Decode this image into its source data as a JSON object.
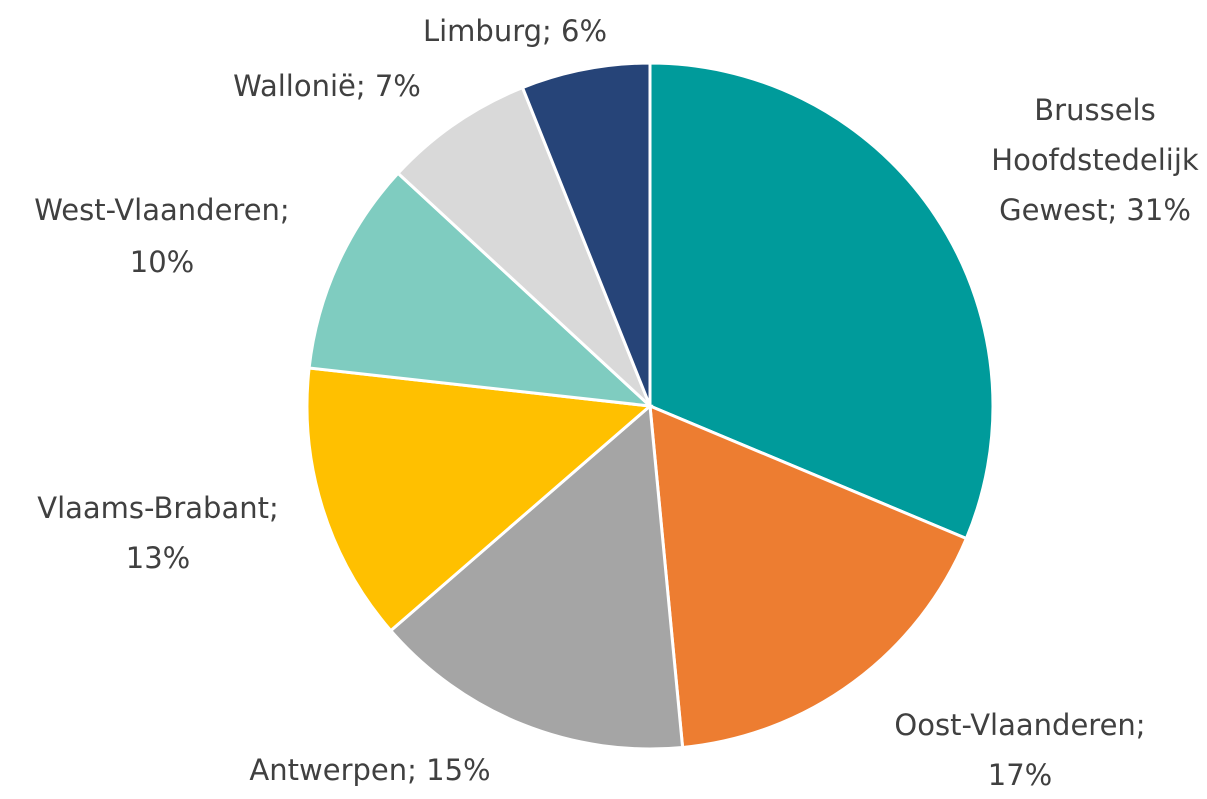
{
  "chart_data": {
    "type": "pie",
    "values": [
      31,
      17,
      15,
      13,
      10,
      7,
      6
    ],
    "value_labels": [
      [
        "Brussels",
        "Hoofdstedelijk",
        "Gewest; 31%"
      ],
      [
        "Oost-Vlaanderen;",
        "17%"
      ],
      [
        "Antwerpen; 15%"
      ],
      [
        "Vlaams-Brabant;",
        "13%"
      ],
      [
        "West-Vlaanderen;",
        "10%"
      ],
      [
        "Wallonië; 7%"
      ],
      [
        "Limburg; 6%"
      ]
    ],
    "colors": [
      "#009B9B",
      "#ED7D31",
      "#A5A5A5",
      "#FFC000",
      "#7FCCC0",
      "#D9D9D9",
      "#264478"
    ]
  }
}
